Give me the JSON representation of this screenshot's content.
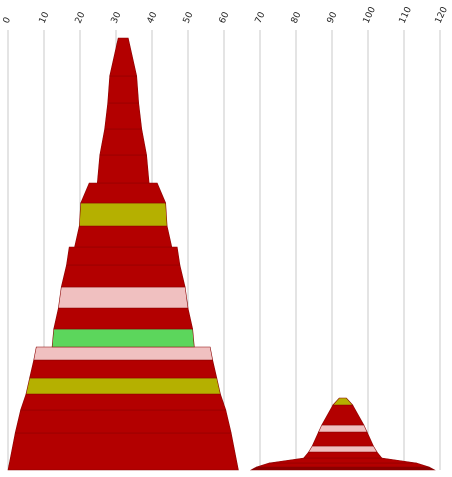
{
  "chart_data": {
    "type": "pyramid",
    "xlim": [
      0,
      120
    ],
    "xticks": [
      0,
      10,
      20,
      30,
      40,
      50,
      60,
      70,
      80,
      90,
      100,
      110,
      120
    ],
    "grid": true,
    "shapes": [
      {
        "center": 32,
        "layers": [
          {
            "color": "#b30000",
            "w": [
              2.8,
              7.5
            ],
            "h": 38
          },
          {
            "color": "#b30000",
            "w": [
              7.5,
              8.6
            ],
            "h": 27
          },
          {
            "color": "#b30000",
            "w": [
              8.6,
              10.3
            ],
            "h": 26
          },
          {
            "color": "#b30000",
            "w": [
              10.3,
              13
            ],
            "h": 26
          },
          {
            "color": "#b30000",
            "w": [
              13,
              14.4
            ],
            "h": 28
          },
          {
            "color": "#b30000",
            "w": [
              18.9,
              23.6
            ],
            "h": 20
          },
          {
            "color": "#b5b000",
            "w": [
              23.6,
              24.4
            ],
            "h": 23
          },
          {
            "color": "#b30000",
            "w": [
              24.4,
              27
            ],
            "h": 21
          },
          {
            "color": "#b30000",
            "w": [
              30,
              31.5
            ],
            "h": 18
          },
          {
            "color": "#b30000",
            "w": [
              31.5,
              34.4
            ],
            "h": 22
          },
          {
            "color": "#f0c0c0",
            "w": [
              34.4,
              36
            ],
            "h": 21
          },
          {
            "color": "#b30000",
            "w": [
              36,
              38.6
            ],
            "h": 21
          },
          {
            "color": "#5cd65c",
            "w": [
              38.6,
              39.5
            ],
            "h": 18
          },
          {
            "color": "#f0c0c0",
            "w": [
              48.3,
              49.7
            ],
            "h": 13
          },
          {
            "color": "#b30000",
            "w": [
              49.7,
              52
            ],
            "h": 18
          },
          {
            "color": "#b5b000",
            "w": [
              52,
              54
            ],
            "h": 16
          },
          {
            "color": "#b30000",
            "w": [
              54,
              57
            ],
            "h": 16
          },
          {
            "color": "#b30000",
            "w": [
              57,
              60
            ],
            "h": 23
          },
          {
            "color": "#b30000",
            "w": [
              60,
              64
            ],
            "h": 37
          }
        ]
      },
      {
        "center": 93,
        "layers": [
          {
            "color": "#b5b000",
            "w": [
              2,
              5.5
            ],
            "h": 7
          },
          {
            "color": "#b30000",
            "w": [
              5.5,
              11.7
            ],
            "h": 20
          },
          {
            "color": "#f0c0c0",
            "w": [
              11.7,
              13.5
            ],
            "h": 7
          },
          {
            "color": "#b30000",
            "w": [
              13.5,
              17
            ],
            "h": 14
          },
          {
            "color": "#f0c0c0",
            "w": [
              17,
              19
            ],
            "h": 6
          },
          {
            "color": "#b30000",
            "w": [
              19,
              21.7
            ],
            "h": 6
          },
          {
            "color": "#b30000",
            "w": [
              21.7,
              41
            ],
            "h": 5
          },
          {
            "color": "#b30000",
            "w": [
              41,
              48
            ],
            "h": 4
          },
          {
            "color": "#8a0000",
            "w": [
              48,
              51
            ],
            "h": 3
          }
        ]
      }
    ]
  }
}
